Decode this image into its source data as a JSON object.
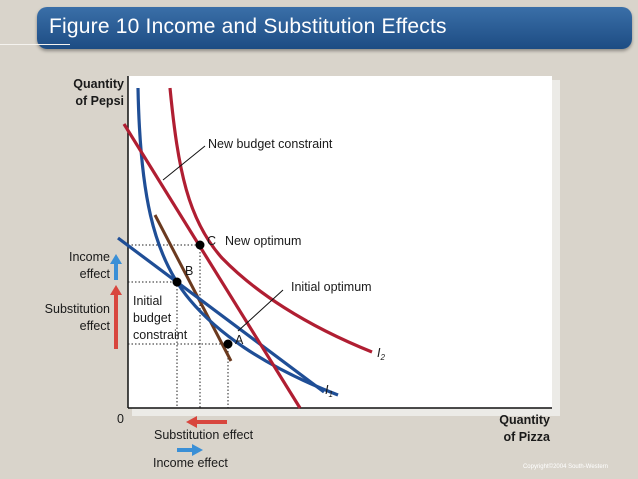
{
  "title": "Figure 10 Income and Substitution Effects",
  "axes": {
    "y_label_line1": "Quantity",
    "y_label_line2": "of Pepsi",
    "x_label_line1": "Quantity",
    "x_label_line2": "of Pizza",
    "origin": "0"
  },
  "labels": {
    "new_budget_constraint": "New budget constraint",
    "new_optimum_point": "C",
    "new_optimum": "New optimum",
    "point_b": "B",
    "initial_optimum": "Initial optimum",
    "point_a": "A",
    "initial_budget_line1": "Initial",
    "initial_budget_line2": "budget",
    "initial_budget_line3": "constraint",
    "i2": "I",
    "i2_sub": "2",
    "i1": "I",
    "i1_sub": "1"
  },
  "effects": {
    "income_line1": "Income",
    "income_line2": "effect",
    "substitution_line1": "Substitution",
    "substitution_line2": "effect",
    "x_substitution": "Substitution effect",
    "x_income": "Income effect"
  },
  "colors": {
    "budget_line": "#b01e32",
    "indifference_curve": "#1f4e96",
    "hypothetical_budget": "#6b3a1f",
    "income_arrow": "#3a8fd6",
    "substitution_arrow": "#d8463e"
  },
  "copyright": "Copyright©2004  South-Western"
}
